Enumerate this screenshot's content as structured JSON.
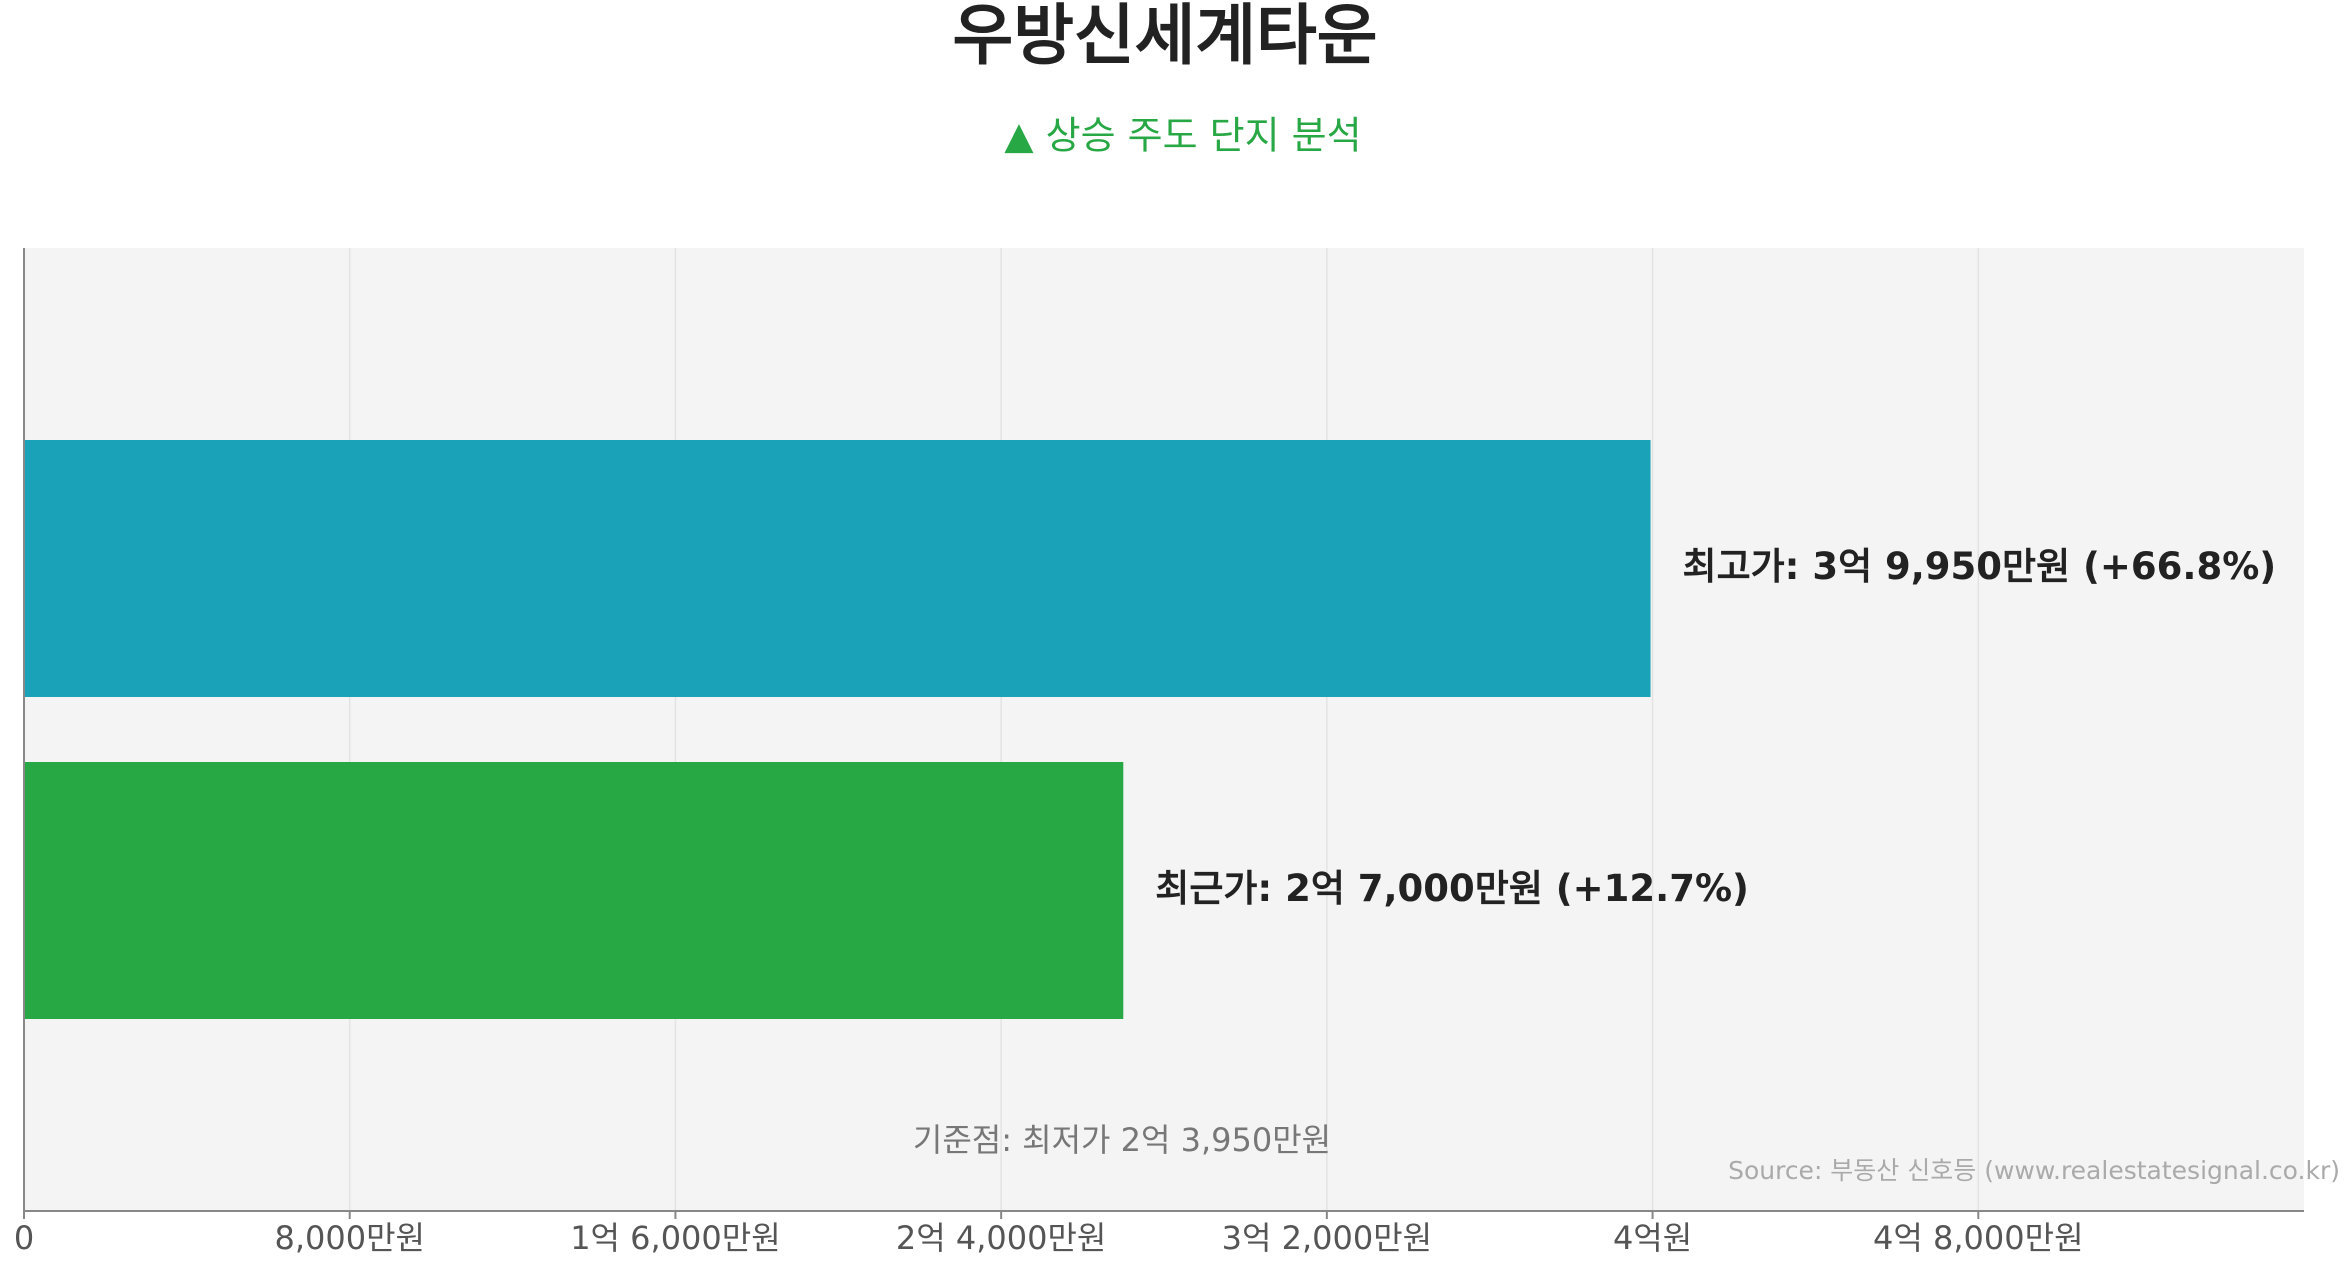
{
  "chart_data": {
    "type": "hbar",
    "title": "우방신세계타운",
    "subtitle": "▲ 상승 주도 단지 분석",
    "values": [
      39950,
      27000
    ],
    "value_labels": [
      "최고가: 3억 9,950만원 (+66.8%)",
      "최근가: 2억 7,000만원 (+12.7%)"
    ],
    "colors": [
      "#19a2b8",
      "#28a745"
    ],
    "xlim": [
      0,
      56000
    ],
    "xticks": [
      0,
      {
        "value": 8000,
        "label": "8,000만원"
      },
      {
        "value": 16000,
        "label": "1억 6,000만원"
      },
      {
        "value": 24000,
        "label": "2억 4,000만원"
      },
      {
        "value": 32000,
        "label": "3억 2,000만원"
      },
      {
        "value": 40000,
        "label": "4억원"
      },
      {
        "value": 48000,
        "label": "4억 8,000만원"
      }
    ],
    "grid": true,
    "annotation": "기준점: 최저가 2억 3,950만원",
    "source": "Source: 부동산 신호등 (www.realestatesignal.co.kr)"
  }
}
